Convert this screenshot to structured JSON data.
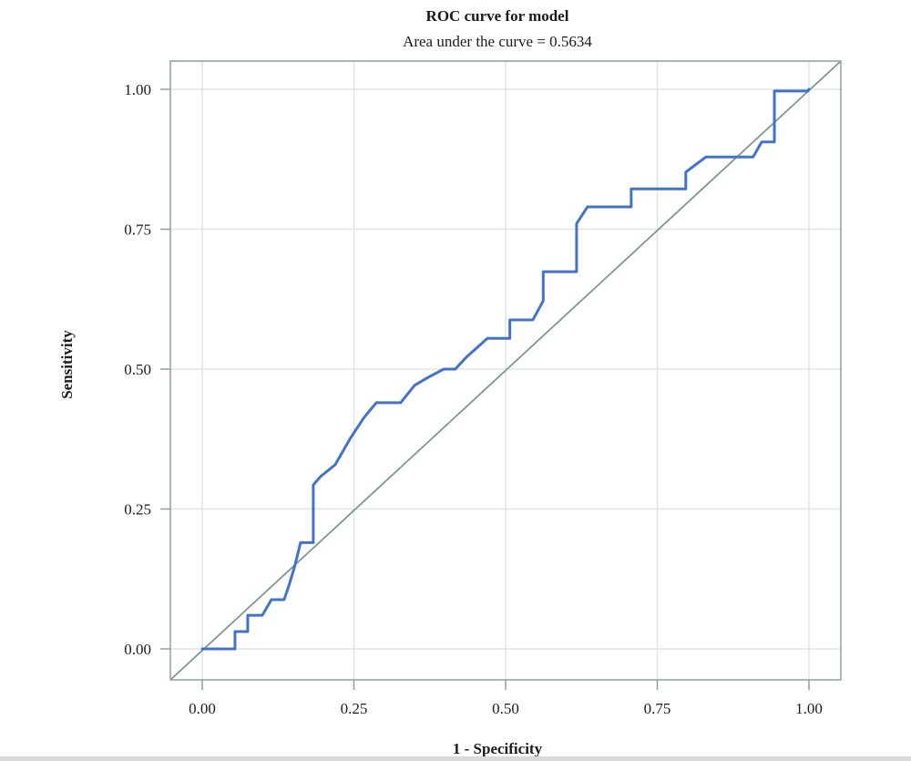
{
  "page": {
    "background": "#ffffff",
    "bottom_strip_color": "#d9d9d9"
  },
  "chart_data": {
    "type": "line",
    "title": "ROC curve for model",
    "subtitle": "Area under the curve = 0.5634",
    "auc": 0.5634,
    "xlabel": "1 - Specificity",
    "ylabel": "Sensitivity",
    "xlim": [
      0,
      1
    ],
    "ylim": [
      0,
      1
    ],
    "grid": true,
    "legend": "none",
    "x_ticks": [
      {
        "value": 0.0,
        "label": "0.00"
      },
      {
        "value": 0.25,
        "label": "0.25"
      },
      {
        "value": 0.5,
        "label": "0.50"
      },
      {
        "value": 0.75,
        "label": "0.75"
      },
      {
        "value": 1.0,
        "label": "1.00"
      }
    ],
    "y_ticks": [
      {
        "value": 0.0,
        "label": "0.00"
      },
      {
        "value": 0.25,
        "label": "0.25"
      },
      {
        "value": 0.5,
        "label": "0.50"
      },
      {
        "value": 0.75,
        "label": "0.75"
      },
      {
        "value": 1.0,
        "label": "1.00"
      }
    ],
    "reference_line": {
      "name": "chance-diagonal",
      "from": [
        0,
        0
      ],
      "to": [
        1,
        1
      ],
      "color": "#7e988e"
    },
    "series": [
      {
        "name": "ROC curve",
        "color": "#4273c8",
        "points": [
          [
            0.0,
            0.0
          ],
          [
            0.054,
            0.0
          ],
          [
            0.054,
            0.031
          ],
          [
            0.075,
            0.031
          ],
          [
            0.075,
            0.06
          ],
          [
            0.099,
            0.06
          ],
          [
            0.114,
            0.088
          ],
          [
            0.135,
            0.088
          ],
          [
            0.144,
            0.117
          ],
          [
            0.153,
            0.15
          ],
          [
            0.162,
            0.19
          ],
          [
            0.183,
            0.19
          ],
          [
            0.183,
            0.293
          ],
          [
            0.195,
            0.308
          ],
          [
            0.219,
            0.329
          ],
          [
            0.245,
            0.378
          ],
          [
            0.267,
            0.414
          ],
          [
            0.287,
            0.44
          ],
          [
            0.327,
            0.44
          ],
          [
            0.35,
            0.471
          ],
          [
            0.372,
            0.485
          ],
          [
            0.398,
            0.5
          ],
          [
            0.417,
            0.5
          ],
          [
            0.435,
            0.521
          ],
          [
            0.47,
            0.555
          ],
          [
            0.507,
            0.555
          ],
          [
            0.507,
            0.588
          ],
          [
            0.545,
            0.588
          ],
          [
            0.562,
            0.622
          ],
          [
            0.562,
            0.674
          ],
          [
            0.617,
            0.674
          ],
          [
            0.617,
            0.76
          ],
          [
            0.635,
            0.79
          ],
          [
            0.707,
            0.79
          ],
          [
            0.707,
            0.822
          ],
          [
            0.797,
            0.822
          ],
          [
            0.797,
            0.852
          ],
          [
            0.83,
            0.879
          ],
          [
            0.908,
            0.879
          ],
          [
            0.922,
            0.906
          ],
          [
            0.943,
            0.906
          ],
          [
            0.943,
            0.997
          ],
          [
            0.998,
            0.997
          ],
          [
            1.0,
            1.0
          ]
        ]
      }
    ],
    "colors": {
      "curve": "#4273c8",
      "diagonal": "#7e988e",
      "panel_border": "#8ba29a",
      "grid": "#dfe6e2",
      "tick": "#8ba29a",
      "text": "#1b1b1b",
      "background": "#ffffff"
    }
  }
}
